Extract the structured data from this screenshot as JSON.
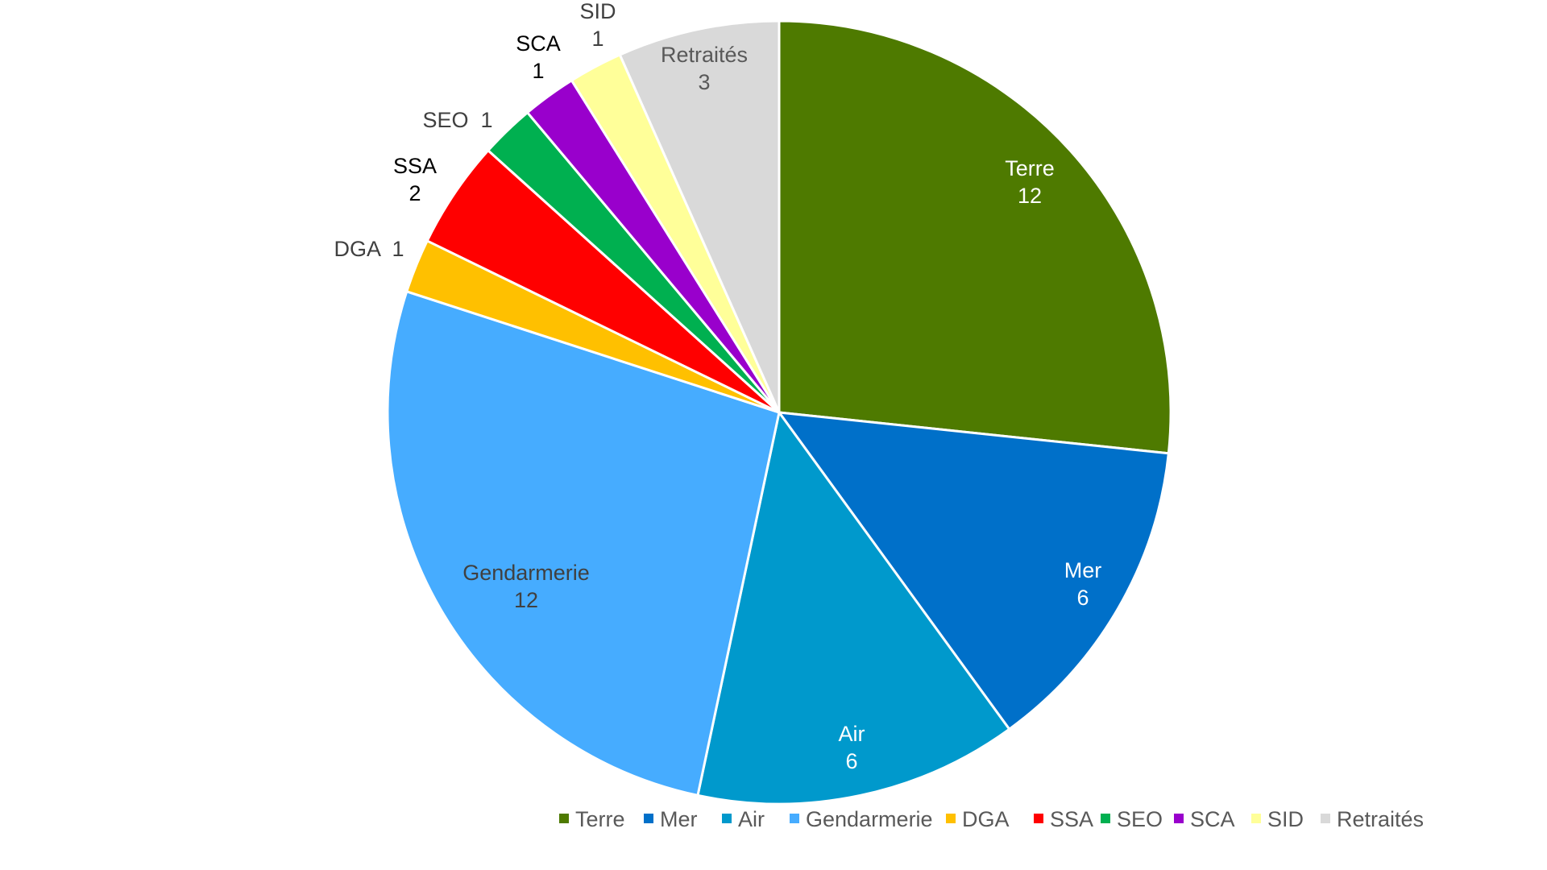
{
  "chart_data": {
    "type": "pie",
    "title": "",
    "slices": [
      {
        "name": "Terre",
        "value": 12,
        "color": "#4E7A00",
        "label_color": "#ffffff",
        "label_lines": [
          "Terre",
          "12"
        ]
      },
      {
        "name": "Mer",
        "value": 6,
        "color": "#0070C9",
        "label_color": "#ffffff",
        "label_lines": [
          "Mer",
          "6"
        ]
      },
      {
        "name": "Air",
        "value": 6,
        "color": "#0099CC",
        "label_color": "#ffffff",
        "label_lines": [
          "Air",
          "6"
        ]
      },
      {
        "name": "Gendarmerie",
        "value": 12,
        "color": "#46ACFF",
        "label_color": "#404040",
        "label_lines": [
          "Gendarmerie",
          "12"
        ]
      },
      {
        "name": "DGA",
        "value": 1,
        "color": "#FFC000",
        "label_color": "#404040",
        "label_lines": [
          "DGA  1"
        ]
      },
      {
        "name": "SSA",
        "value": 2,
        "color": "#FF0000",
        "label_color": "#000000",
        "label_lines": [
          "SSA",
          "2"
        ]
      },
      {
        "name": "SEO",
        "value": 1,
        "color": "#00B050",
        "label_color": "#404040",
        "label_lines": [
          "SEO  1"
        ]
      },
      {
        "name": "SCA",
        "value": 1,
        "color": "#9900CC",
        "label_color": "#000000",
        "label_lines": [
          "SCA",
          "1"
        ]
      },
      {
        "name": "SID",
        "value": 1,
        "color": "#FFFF99",
        "label_color": "#404040",
        "label_lines": [
          "SID",
          "1"
        ]
      },
      {
        "name": "Retraités",
        "value": 3,
        "color": "#D9D9D9",
        "label_color": "#595959",
        "label_lines": [
          "Retraités",
          "3"
        ]
      }
    ],
    "legend": {
      "position": "bottom-right",
      "entries": [
        "Terre",
        "Mer",
        "Air",
        "Gendarmerie",
        "DGA",
        "SSA",
        "SEO",
        "SCA",
        "SID",
        "Retraités"
      ]
    }
  }
}
